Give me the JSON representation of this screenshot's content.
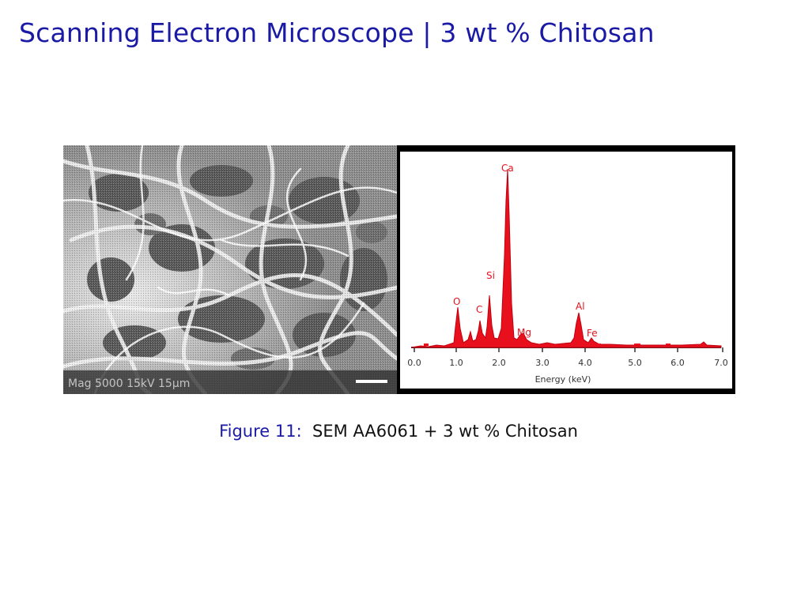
{
  "slide": {
    "title": "Scanning Electron Microscope | 3 wt % Chitosan"
  },
  "figure": {
    "sem_micrograph": {
      "label_bar": "Mag 5000  15kV  15µm  "
    },
    "eds_spectrum": {
      "xlabel": "Energy (keV)",
      "tick_labels": [
        "0.0",
        "1.0",
        "2.0",
        "3.0",
        "4.0",
        "5.0",
        "6.0",
        "7.0"
      ],
      "peak_labels": {
        "O": "O",
        "C": "C",
        "Si": "Si",
        "Ca": "Ca",
        "Mg": "Mg",
        "Al": "Al",
        "Fe": "Fe"
      },
      "colors": {
        "spectrum": "#e8101c",
        "frame": "#000000"
      }
    },
    "caption_label": "Figure 11:",
    "caption_text": "SEM AA6061 + 3 wt % Chitosan"
  }
}
